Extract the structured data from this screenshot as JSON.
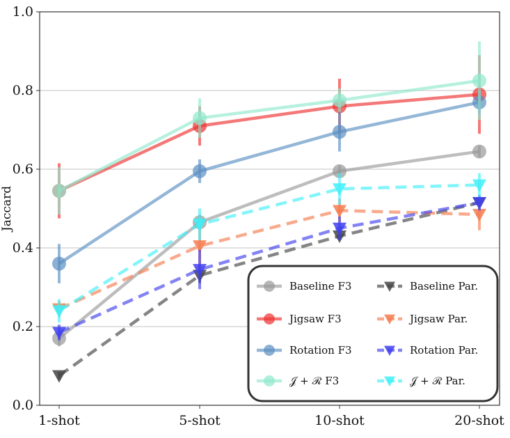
{
  "chart_data": {
    "type": "line",
    "title": "",
    "xlabel": "",
    "ylabel": "Jaccard",
    "categories": [
      "1-shot",
      "5-shot",
      "10-shot",
      "20-shot"
    ],
    "ylim": [
      0.0,
      1.0
    ],
    "yticks": [
      0.0,
      0.2,
      0.4,
      0.6,
      0.8,
      1.0
    ],
    "ytick_labels": [
      "0.0",
      "0.2",
      "0.4",
      "0.6",
      "0.8",
      "1.0"
    ],
    "grid": "horizontal",
    "legend_position": "bottom-right",
    "series": [
      {
        "name": "Baseline F3",
        "style": "solid",
        "marker": "circle",
        "color": "#999999",
        "values": [
          0.17,
          0.465,
          0.595,
          0.645
        ],
        "errors": [
          0.02,
          0.02,
          0.015,
          0.015
        ]
      },
      {
        "name": "Jigsaw F3",
        "style": "solid",
        "marker": "circle",
        "color": "#ee3030",
        "values": [
          0.545,
          0.71,
          0.76,
          0.79
        ],
        "errors": [
          0.07,
          0.05,
          0.07,
          0.1
        ]
      },
      {
        "name": "Rotation F3",
        "style": "solid",
        "marker": "circle",
        "color": "#5b8fc2",
        "values": [
          0.36,
          0.595,
          0.695,
          0.77
        ],
        "errors": [
          0.05,
          0.03,
          0.05,
          0.03
        ]
      },
      {
        "name": "J + R F3",
        "style": "solid",
        "marker": "circle",
        "color": "#8fe8cc",
        "values": [
          0.545,
          0.73,
          0.775,
          0.825
        ],
        "errors": [
          0.06,
          0.05,
          0.03,
          0.1
        ]
      },
      {
        "name": "Baseline Par.",
        "style": "dashed",
        "marker": "triangle",
        "color": "#444444",
        "values": [
          0.075,
          0.33,
          0.43,
          0.515
        ],
        "errors": [
          0.01,
          0.02,
          0.01,
          0.01
        ]
      },
      {
        "name": "Jigsaw Par.",
        "style": "dashed",
        "marker": "triangle",
        "color": "#f47c50",
        "values": [
          0.245,
          0.405,
          0.495,
          0.485
        ],
        "errors": [
          0.02,
          0.06,
          0.03,
          0.04
        ]
      },
      {
        "name": "Rotation Par.",
        "style": "dashed",
        "marker": "triangle",
        "color": "#4040ee",
        "values": [
          0.185,
          0.345,
          0.45,
          0.515
        ],
        "errors": [
          0.02,
          0.05,
          0.03,
          0.02
        ]
      },
      {
        "name": "J + R Par.",
        "style": "dashed",
        "marker": "triangle",
        "color": "#40f0f8",
        "values": [
          0.24,
          0.46,
          0.55,
          0.56
        ],
        "errors": [
          0.03,
          0.04,
          0.04,
          0.03
        ]
      }
    ],
    "legend": {
      "entries": [
        {
          "series": 0,
          "label": "Baseline F3"
        },
        {
          "series": 4,
          "label": "Baseline Par."
        },
        {
          "series": 1,
          "label": "Jigsaw F3"
        },
        {
          "series": 5,
          "label": "Jigsaw Par."
        },
        {
          "series": 2,
          "label": "Rotation F3"
        },
        {
          "series": 6,
          "label": "Rotation Par."
        },
        {
          "series": 3,
          "label": "𝒥 + ℛ    F3"
        },
        {
          "series": 7,
          "label": "𝒥 + ℛ    Par."
        }
      ]
    }
  }
}
